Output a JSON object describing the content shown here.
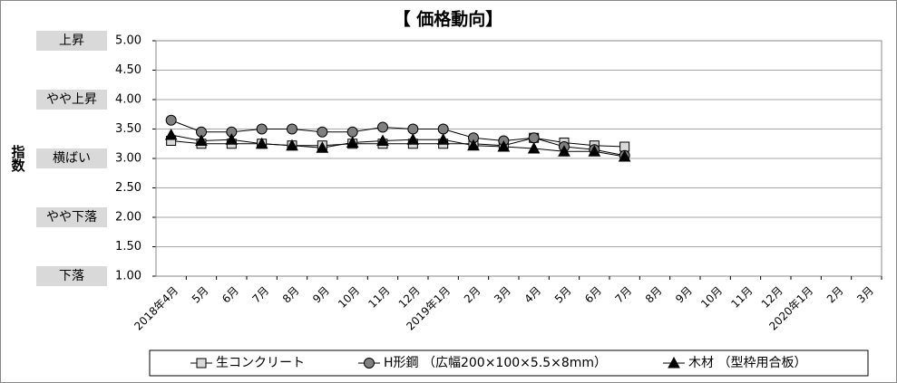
{
  "chart_data": {
    "type": "line",
    "title": "【 価格動向】",
    "y_label": "指数",
    "categories": [
      "2018年4月",
      "5月",
      "6月",
      "7月",
      "8月",
      "9月",
      "10月",
      "11月",
      "12月",
      "2019年1月",
      "2月",
      "3月",
      "4月",
      "5月",
      "6月",
      "7月",
      "8月",
      "9月",
      "10月",
      "11月",
      "12月",
      "2020年1月",
      "2月",
      "3月"
    ],
    "ylim": [
      1,
      5
    ],
    "yticks": [
      {
        "value": 1,
        "label": "1.00"
      },
      {
        "value": 1.5,
        "label": "1.50"
      },
      {
        "value": 2,
        "label": "2.00"
      },
      {
        "value": 2.5,
        "label": "2.50"
      },
      {
        "value": 3,
        "label": "3.00"
      },
      {
        "value": 3.5,
        "label": "3.50"
      },
      {
        "value": 4,
        "label": "4.00"
      },
      {
        "value": 4.5,
        "label": "4.50"
      },
      {
        "value": 5,
        "label": "5.00"
      }
    ],
    "y_annotations": [
      {
        "value": 5,
        "label": "上昇"
      },
      {
        "value": 4,
        "label": "やや上昇"
      },
      {
        "value": 3,
        "label": "横ばい"
      },
      {
        "value": 2,
        "label": "やや下落"
      },
      {
        "value": 1,
        "label": "下落"
      }
    ],
    "grid": true,
    "legend": "bottom",
    "series": [
      {
        "name": "生コンクリート",
        "color": "#d9d9d9",
        "marker": "square",
        "values": [
          3.3,
          3.25,
          3.25,
          3.25,
          3.22,
          3.22,
          3.25,
          3.25,
          3.25,
          3.25,
          3.25,
          3.22,
          3.35,
          3.27,
          3.22,
          3.2,
          null,
          null,
          null,
          null,
          null,
          null,
          null,
          null
        ]
      },
      {
        "name": "H形鋼 （広幅200×100×5.5×8mm）",
        "color": "#808080",
        "marker": "circle",
        "values": [
          3.65,
          3.45,
          3.45,
          3.5,
          3.5,
          3.45,
          3.45,
          3.53,
          3.5,
          3.5,
          3.35,
          3.3,
          3.35,
          3.2,
          3.15,
          3.05,
          null,
          null,
          null,
          null,
          null,
          null,
          null,
          null
        ]
      },
      {
        "name": "木材 （型枠用合板）",
        "color": "#000000",
        "marker": "triangle",
        "values": [
          3.4,
          3.3,
          3.32,
          3.25,
          3.22,
          3.18,
          3.27,
          3.3,
          3.32,
          3.32,
          3.22,
          3.2,
          3.17,
          3.12,
          3.12,
          3.03,
          null,
          null,
          null,
          null,
          null,
          null,
          null,
          null
        ]
      }
    ]
  }
}
